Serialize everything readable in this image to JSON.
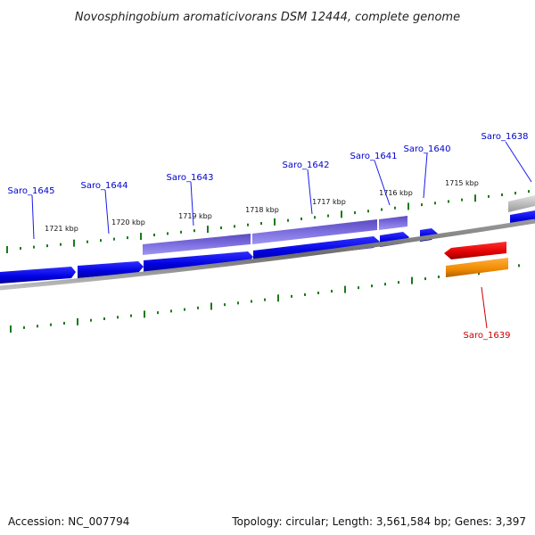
{
  "title": "Novosphingobium aromaticivorans DSM 12444, complete genome",
  "footer": {
    "accession": "Accession: NC_007794",
    "summary": "Topology: circular; Length: 3,561,584 bp; Genes: 3,397"
  },
  "colors": {
    "forward_cds": "#1010ee",
    "forward_gene": "#6a5acd",
    "reverse_cds": "#ee1111",
    "reverse_gene": "#ff8c00",
    "backbone": "#888888",
    "tick": "#1a7a1a",
    "label_forward": "#0000cc",
    "label_reverse": "#cc0000"
  },
  "kbp_labels": [
    {
      "text": "1721 kbp"
    },
    {
      "text": "1720 kbp"
    },
    {
      "text": "1719 kbp"
    },
    {
      "text": "1718 kbp"
    },
    {
      "text": "1717 kbp"
    },
    {
      "text": "1716 kbp"
    },
    {
      "text": "1715 kbp"
    }
  ],
  "genes": [
    {
      "name": "Saro_1645"
    },
    {
      "name": "Saro_1644"
    },
    {
      "name": "Saro_1643"
    },
    {
      "name": "Saro_1642"
    },
    {
      "name": "Saro_1641"
    },
    {
      "name": "Saro_1640"
    },
    {
      "name": "Saro_1638"
    },
    {
      "name": "Saro_1639"
    }
  ]
}
